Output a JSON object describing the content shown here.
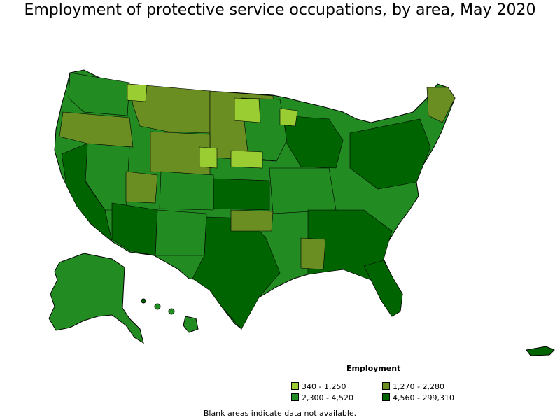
{
  "title": "Employment of protective service occupations, by area, May 2020",
  "legend": {
    "title": "Employment",
    "items": [
      {
        "label": "340 - 1,250",
        "color": "#9acd32"
      },
      {
        "label": "1,270 - 2,280",
        "color": "#6b8e23"
      },
      {
        "label": "2,300 - 4,520",
        "color": "#228b22"
      },
      {
        "label": "4,560 - 299,310",
        "color": "#006400"
      }
    ]
  },
  "footnote": "Blank areas indicate data not available.",
  "map_colors": {
    "light": "#9acd32",
    "olive": "#6b8e23",
    "medium": "#228b22",
    "dark": "#006400",
    "border": "#000000"
  }
}
